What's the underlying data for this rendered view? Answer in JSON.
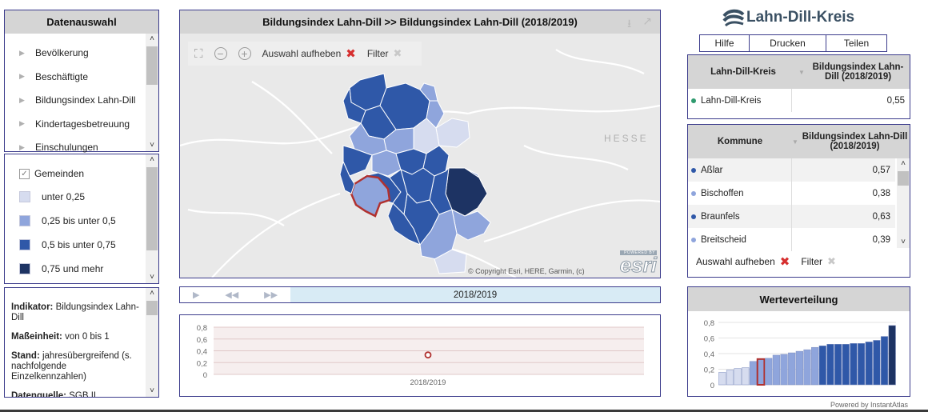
{
  "datenauswahl": {
    "title": "Datenauswahl",
    "items": [
      {
        "label": "Bevölkerung"
      },
      {
        "label": "Beschäftigte"
      },
      {
        "label": "Bildungsindex Lahn-Dill"
      },
      {
        "label": "Kindertagesbetreuung"
      },
      {
        "label": "Einschulungen"
      }
    ]
  },
  "legend": {
    "layer_label": "Gemeinden",
    "classes": [
      {
        "label": "unter 0,25",
        "color": "#d6dcef"
      },
      {
        "label": "0,25 bis unter 0,5",
        "color": "#8fa5dc"
      },
      {
        "label": "0,5 bis unter 0,75",
        "color": "#2f58a8"
      },
      {
        "label": "0,75 und mehr",
        "color": "#1d3363"
      }
    ]
  },
  "info": {
    "indikator_label": "Indikator:",
    "indikator_value": " Bildungsindex Lahn-Dill",
    "masseinheit_label": "Maßeinheit:",
    "masseinheit_value": " von 0 bis 1",
    "stand_label": "Stand:",
    "stand_value": " jahresübergreifend (s. nachfolgende Einzelkennzahlen)",
    "datenquelle_label": "Datenquelle:",
    "datenquelle_value": " SGB II"
  },
  "map": {
    "title": "Bildungsindex Lahn-Dill >>  Bildungsindex Lahn-Dill (2018/2019)",
    "toolbar_clear": "Auswahl aufheben",
    "toolbar_filter": "Filter",
    "region_label": "HESSE",
    "copyright": "© Copyright Esri, HERE, Garmin, (c)",
    "powered_by": "POWERED BY",
    "esri": "esri"
  },
  "timeline": {
    "period": "2018/2019"
  },
  "timechart": {
    "y_ticks": [
      "0,8",
      "0,6",
      "0,4",
      "0,2",
      "0"
    ],
    "x_label": "2018/2019",
    "value": 0.33
  },
  "brand": {
    "name": "Lahn-Dill-Kreis"
  },
  "actions": {
    "help": "Hilfe",
    "print": "Drucken",
    "share": "Teilen"
  },
  "summary_table": {
    "col1": "Lahn-Dill-Kreis",
    "col2": "Bildungsindex Lahn-Dill (2018/2019)",
    "rows": [
      {
        "name": "Lahn-Dill-Kreis",
        "value": "0,55",
        "dot": "#2e9a6e"
      }
    ]
  },
  "kommune_table": {
    "col1": "Kommune",
    "col2": "Bildungsindex Lahn-Dill (2018/2019)",
    "rows": [
      {
        "name": "Aßlar",
        "value": "0,57",
        "dot": "#2f58a8"
      },
      {
        "name": "Bischoffen",
        "value": "0,38",
        "dot": "#8fa5dc"
      },
      {
        "name": "Braunfels",
        "value": "0,63",
        "dot": "#2f58a8"
      },
      {
        "name": "Breitscheid",
        "value": "0,39",
        "dot": "#8fa5dc"
      }
    ],
    "clear": "Auswahl aufheben",
    "filter": "Filter"
  },
  "distribution": {
    "title": "Werteverteilung",
    "y_ticks": [
      "0,8",
      "0,6",
      "0,4",
      "0,2",
      "0"
    ]
  },
  "footer": {
    "powered": "Powered by InstantAtlas"
  },
  "chart_data": {
    "type": "bar",
    "title": "Werteverteilung",
    "ylim": [
      0,
      0.8
    ],
    "values": [
      0.16,
      0.19,
      0.21,
      0.22,
      0.3,
      0.33,
      0.34,
      0.38,
      0.39,
      0.41,
      0.43,
      0.45,
      0.48,
      0.5,
      0.52,
      0.52,
      0.52,
      0.53,
      0.53,
      0.55,
      0.57,
      0.62,
      0.76
    ],
    "highlighted_index": 5
  }
}
